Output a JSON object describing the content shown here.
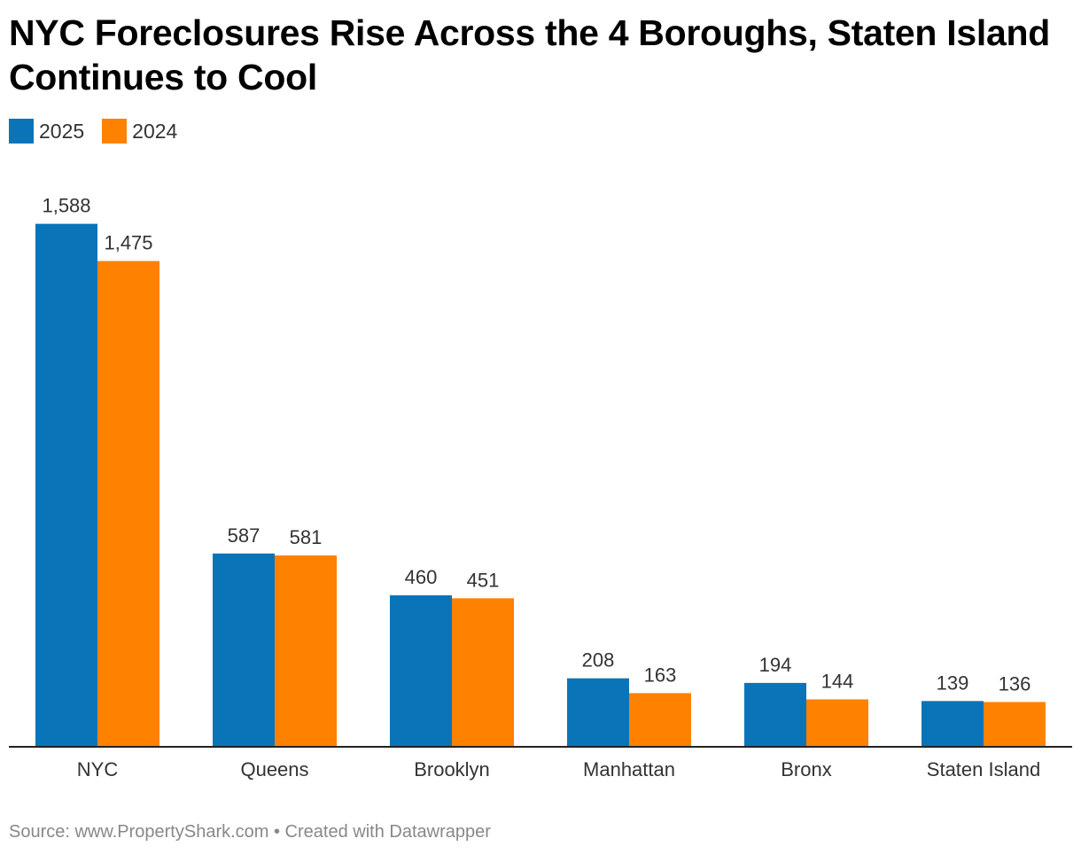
{
  "chart_data": {
    "type": "bar",
    "title": "NYC Foreclosures Rise Across the 4 Boroughs, Staten Island Continues to Cool",
    "categories": [
      "NYC",
      "Queens",
      "Brooklyn",
      "Manhattan",
      "Bronx",
      "Staten Island"
    ],
    "series": [
      {
        "name": "2025",
        "color": "#0a74b8",
        "values": [
          1588,
          587,
          460,
          208,
          194,
          139
        ],
        "labels": [
          "1,588",
          "587",
          "460",
          "208",
          "194",
          "139"
        ]
      },
      {
        "name": "2024",
        "color": "#ff8100",
        "values": [
          1475,
          581,
          451,
          163,
          144,
          136
        ],
        "labels": [
          "1,475",
          "581",
          "451",
          "163",
          "144",
          "136"
        ]
      }
    ],
    "ylim": [
      0,
      1700
    ],
    "grid": false,
    "legend_position": "top-left",
    "value_labels": true
  },
  "legend": {
    "items": [
      {
        "label": "2025",
        "color": "#0a74b8"
      },
      {
        "label": "2024",
        "color": "#ff8100"
      }
    ]
  },
  "footer": {
    "source": "Source: www.PropertyShark.com • Created with Datawrapper"
  }
}
